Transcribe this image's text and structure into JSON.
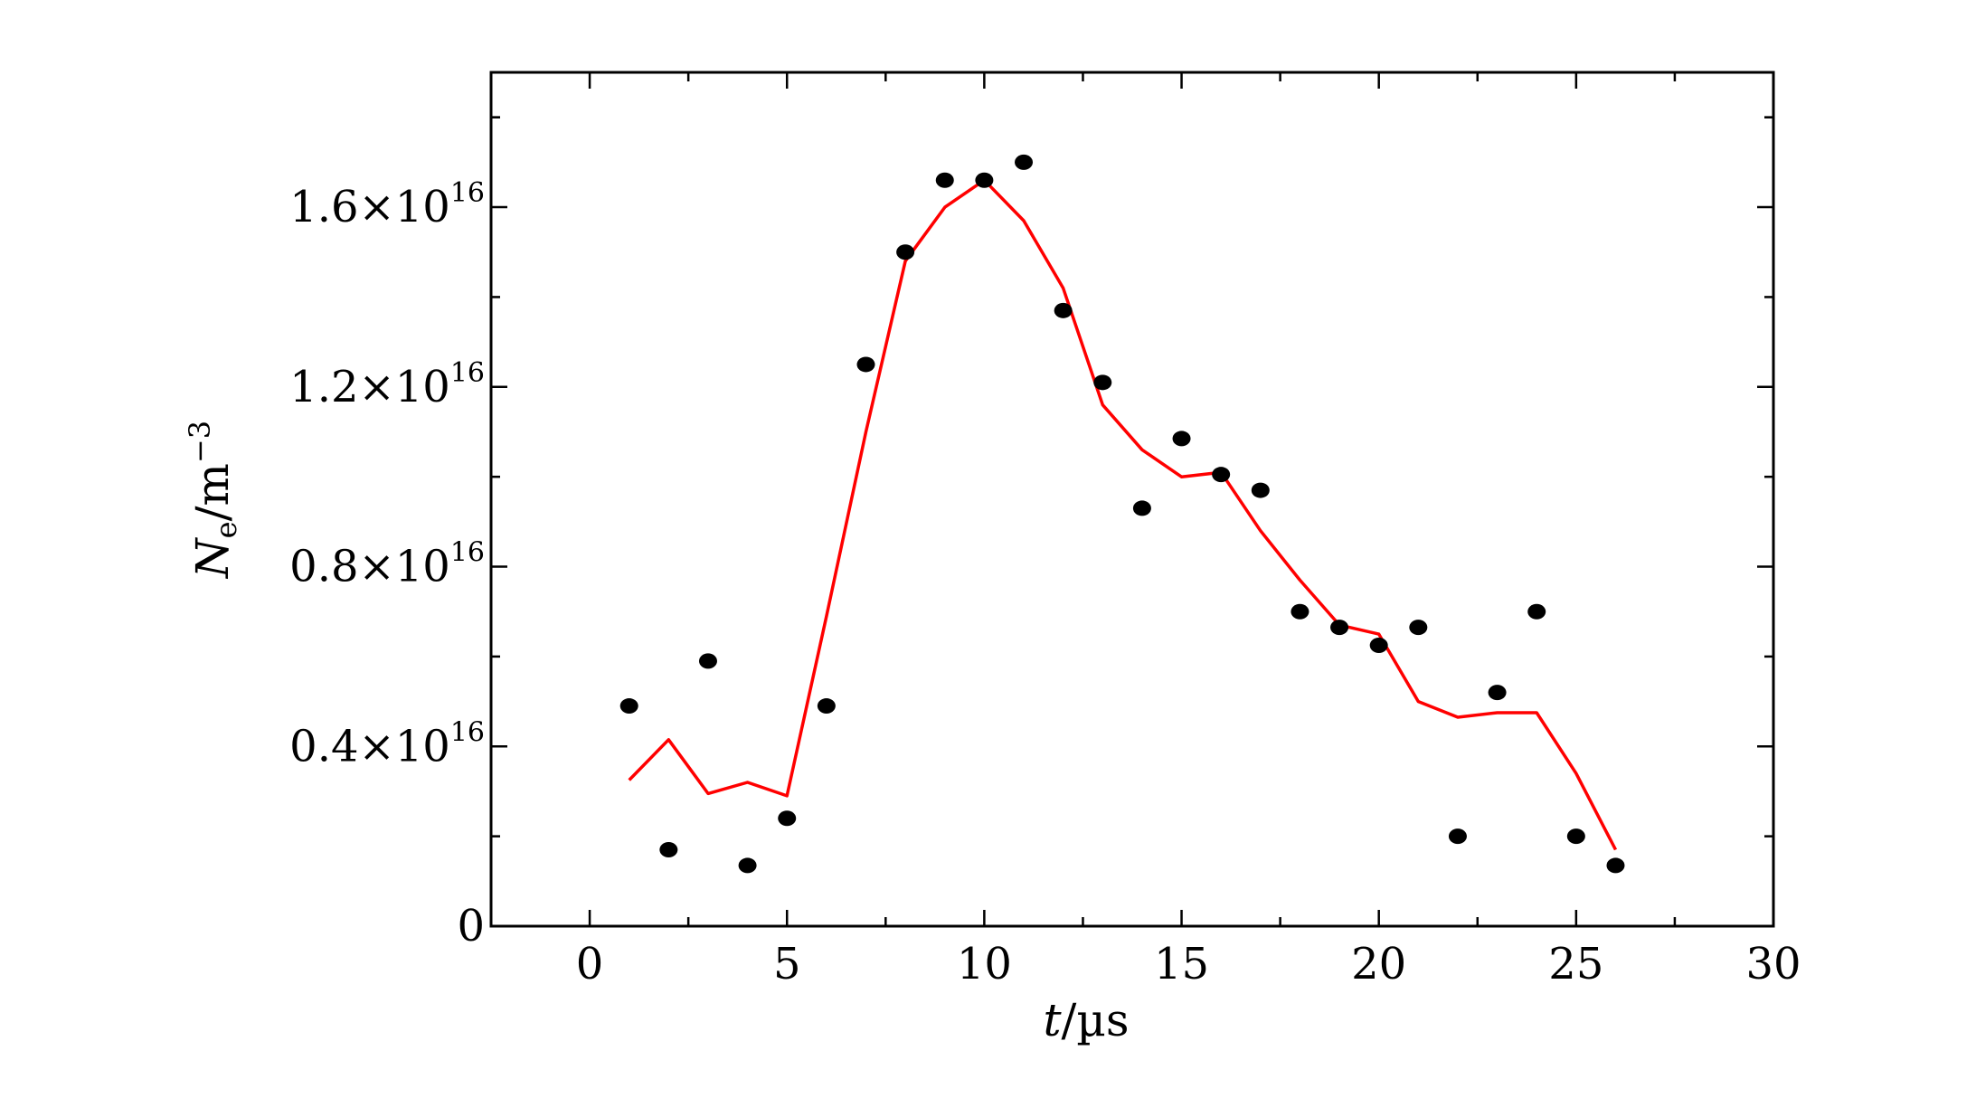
{
  "chart_data": {
    "type": "scatter",
    "title": "",
    "xlabel": {
      "var": "t",
      "unit": "/µs"
    },
    "ylabel": {
      "var": "N",
      "sub": "e",
      "unit": "/m",
      "sup": "−3"
    },
    "xlim": [
      -2.5,
      30
    ],
    "ylim": [
      0,
      1.9e+16
    ],
    "xticks": [
      {
        "value": 0,
        "label": "0"
      },
      {
        "value": 5,
        "label": "5"
      },
      {
        "value": 10,
        "label": "10"
      },
      {
        "value": 15,
        "label": "15"
      },
      {
        "value": 20,
        "label": "20"
      },
      {
        "value": 25,
        "label": "25"
      },
      {
        "value": 30,
        "label": "30"
      }
    ],
    "yticks": [
      {
        "value": 0,
        "mantissa": "0",
        "exp": ""
      },
      {
        "value": 4000000000000000.0,
        "mantissa": "0.4×10",
        "exp": "16"
      },
      {
        "value": 8000000000000000.0,
        "mantissa": "0.8×10",
        "exp": "16"
      },
      {
        "value": 1.2e+16,
        "mantissa": "1.2×10",
        "exp": "16"
      },
      {
        "value": 1.6e+16,
        "mantissa": "1.6×10",
        "exp": "16"
      }
    ],
    "grid": false,
    "series": [
      {
        "kind": "scatter",
        "color": "#000000",
        "x": [
          1,
          2,
          3,
          4,
          5,
          6,
          7,
          8,
          9,
          10,
          11,
          12,
          13,
          14,
          15,
          16,
          17,
          18,
          19,
          20,
          21,
          22,
          23,
          24,
          25,
          26
        ],
        "y": [
          4900000000000000.0,
          1700000000000000.0,
          5900000000000000.0,
          1350000000000000.0,
          2400000000000000.0,
          4900000000000000.0,
          1.25e+16,
          1.5e+16,
          1.66e+16,
          1.66e+16,
          1.7e+16,
          1.37e+16,
          1.21e+16,
          9300000000000000.0,
          1.085e+16,
          1.005e+16,
          9700000000000000.0,
          7000000000000000.0,
          6650000000000000.0,
          6250000000000000.0,
          6650000000000000.0,
          2000000000000000.0,
          5200000000000000.0,
          7000000000000000.0,
          2000000000000000.0,
          1350000000000000.0
        ]
      },
      {
        "kind": "line",
        "color": "#ff0000",
        "x": [
          1,
          2,
          3,
          4,
          5,
          6,
          7,
          8,
          9,
          10,
          11,
          12,
          13,
          14,
          15,
          16,
          17,
          18,
          19,
          20,
          21,
          22,
          23,
          24,
          25,
          26
        ],
        "y": [
          3250000000000000.0,
          4150000000000000.0,
          2950000000000000.0,
          3200000000000000.0,
          2900000000000000.0,
          6900000000000000.0,
          1.1e+16,
          1.48e+16,
          1.6e+16,
          1.66e+16,
          1.57e+16,
          1.42e+16,
          1.16e+16,
          1.06e+16,
          1e+16,
          1.01e+16,
          8800000000000000.0,
          7700000000000000.0,
          6700000000000000.0,
          6500000000000000.0,
          5000000000000000.0,
          4650000000000000.0,
          4750000000000000.0,
          4750000000000000.0,
          3400000000000000.0,
          1700000000000000.0
        ]
      }
    ]
  }
}
